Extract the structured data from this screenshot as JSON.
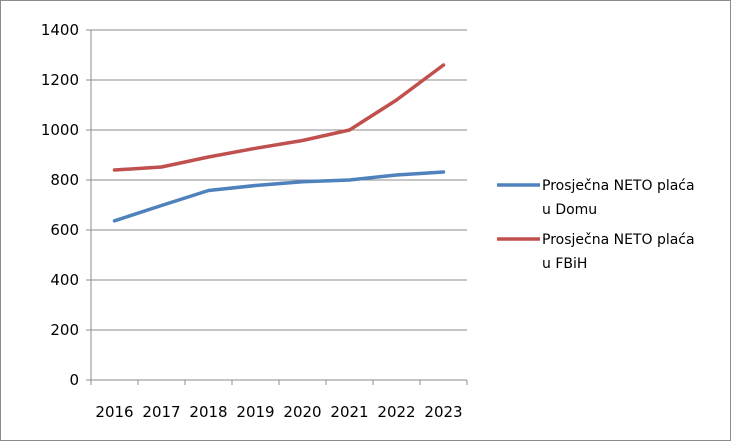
{
  "chart_data": {
    "type": "line",
    "categories": [
      "2016",
      "2017",
      "2018",
      "2019",
      "2020",
      "2021",
      "2022",
      "2023"
    ],
    "ylim": [
      0,
      1400
    ],
    "yticks": [
      0,
      200,
      400,
      600,
      800,
      1000,
      1200,
      1400
    ],
    "grid": true,
    "legend_position": "right",
    "series": [
      {
        "name": "Prosječna NETO plaća u Domu",
        "name_lines": [
          "Prosječna NETO plaća",
          "u Domu"
        ],
        "color": "#4f81bd",
        "values": [
          637,
          698,
          758,
          778,
          793,
          800,
          820,
          832
        ]
      },
      {
        "name": "Prosječna NETO plaća u FBiH",
        "name_lines": [
          "Prosječna NETO plaća",
          "u FBiH"
        ],
        "color": "#c0504d",
        "values": [
          840,
          852,
          892,
          927,
          958,
          1000,
          1120,
          1260
        ]
      }
    ]
  }
}
